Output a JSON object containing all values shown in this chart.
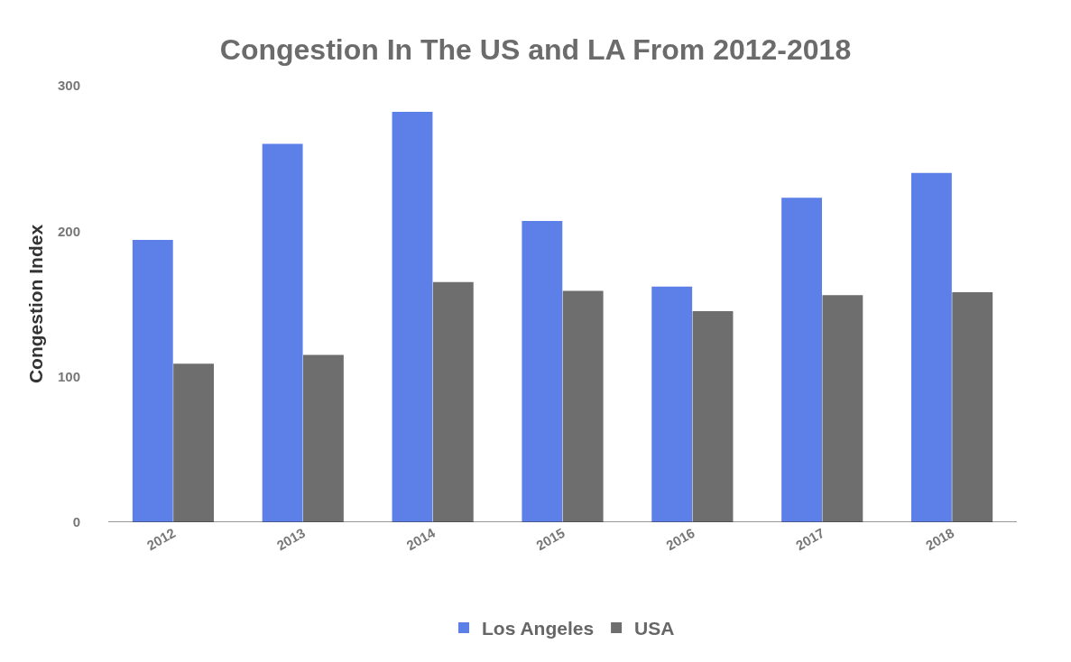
{
  "chart_data": {
    "type": "bar",
    "title": "Congestion In The US and LA From 2012-2018",
    "ylabel": "Congestion Index",
    "categories": [
      "2012",
      "2013",
      "2014",
      "2015",
      "2016",
      "2017",
      "2018"
    ],
    "series": [
      {
        "name": "Los Angeles",
        "color": "#5d80e8",
        "values": [
          194,
          260,
          282,
          207,
          162,
          223,
          240
        ]
      },
      {
        "name": "USA",
        "color": "#6e6e6e",
        "values": [
          109,
          115,
          165,
          159,
          145,
          156,
          158
        ]
      }
    ],
    "ylim": [
      0,
      300
    ],
    "yticks": [
      0,
      100,
      200,
      300
    ],
    "grid": false,
    "legend": "bottom"
  }
}
